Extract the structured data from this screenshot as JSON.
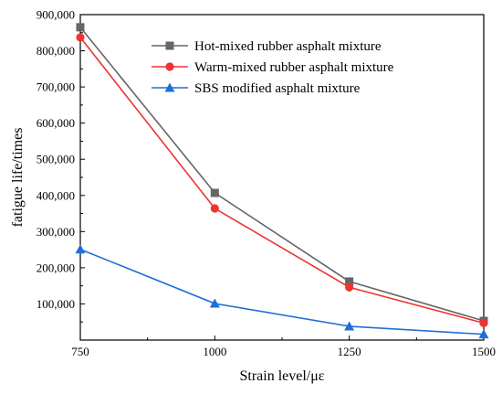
{
  "chart_data": {
    "type": "line",
    "xlabel": "Strain level/με",
    "ylabel": "fatigue life/times",
    "x": [
      750,
      1000,
      1250,
      1500
    ],
    "xlim": [
      750,
      1500
    ],
    "ylim": [
      0,
      900000
    ],
    "x_ticks": [
      "750",
      "1000",
      "1250",
      "1500"
    ],
    "y_ticks": [
      {
        "value": 100000,
        "label": "100,000"
      },
      {
        "value": 200000,
        "label": "200,000"
      },
      {
        "value": 300000,
        "label": "300,000"
      },
      {
        "value": 400000,
        "label": "400,000"
      },
      {
        "value": 500000,
        "label": "500,000"
      },
      {
        "value": 600000,
        "label": "600,000"
      },
      {
        "value": 700000,
        "label": "700,000"
      },
      {
        "value": 800000,
        "label": "800,000"
      },
      {
        "value": 900000,
        "label": "900,000"
      }
    ],
    "grid": false,
    "legend_position": "top-right",
    "series": [
      {
        "name": "Hot-mixed rubber asphalt mixture",
        "color": "#666666",
        "marker": "square",
        "values": [
          865000,
          407000,
          162000,
          53000
        ]
      },
      {
        "name": "Warm-mixed rubber asphalt mixture",
        "color": "#ee3333",
        "marker": "circle",
        "values": [
          837000,
          364000,
          146000,
          47000
        ]
      },
      {
        "name": "SBS modified asphalt mixture",
        "color": "#1f6fd6",
        "marker": "triangle",
        "values": [
          251000,
          101000,
          38000,
          16000
        ]
      }
    ]
  }
}
